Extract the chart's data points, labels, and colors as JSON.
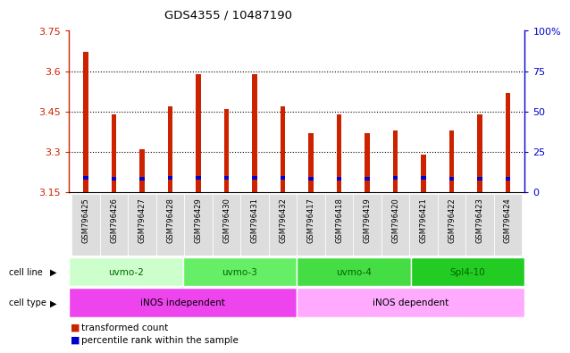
{
  "title": "GDS4355 / 10487190",
  "samples": [
    "GSM796425",
    "GSM796426",
    "GSM796427",
    "GSM796428",
    "GSM796429",
    "GSM796430",
    "GSM796431",
    "GSM796432",
    "GSM796417",
    "GSM796418",
    "GSM796419",
    "GSM796420",
    "GSM796421",
    "GSM796422",
    "GSM796423",
    "GSM796424"
  ],
  "red_values": [
    3.67,
    3.44,
    3.31,
    3.47,
    3.59,
    3.46,
    3.59,
    3.47,
    3.37,
    3.44,
    3.37,
    3.38,
    3.29,
    3.38,
    3.44,
    3.52
  ],
  "blue_bottom": [
    3.195,
    3.193,
    3.193,
    3.195,
    3.196,
    3.195,
    3.196,
    3.195,
    3.193,
    3.193,
    3.193,
    3.195,
    3.195,
    3.193,
    3.193,
    3.193
  ],
  "blue_heights": [
    0.013,
    0.013,
    0.013,
    0.013,
    0.013,
    0.013,
    0.013,
    0.013,
    0.013,
    0.013,
    0.013,
    0.013,
    0.013,
    0.013,
    0.013,
    0.013
  ],
  "ymin": 3.15,
  "ymax": 3.75,
  "y_ticks": [
    3.15,
    3.3,
    3.45,
    3.6,
    3.75
  ],
  "right_ticks": [
    "0",
    "25",
    "50",
    "75",
    "100%"
  ],
  "right_tick_pos": [
    3.15,
    3.3,
    3.45,
    3.6,
    3.75
  ],
  "cell_line_groups": [
    {
      "label": "uvmo-2",
      "start": 0,
      "end": 4,
      "color": "#ccffcc"
    },
    {
      "label": "uvmo-3",
      "start": 4,
      "end": 8,
      "color": "#66ee66"
    },
    {
      "label": "uvmo-4",
      "start": 8,
      "end": 12,
      "color": "#44dd44"
    },
    {
      "label": "Spl4-10",
      "start": 12,
      "end": 16,
      "color": "#22cc22"
    }
  ],
  "cell_type_groups": [
    {
      "label": "iNOS independent",
      "start": 0,
      "end": 8,
      "color": "#ee44ee"
    },
    {
      "label": "iNOS dependent",
      "start": 8,
      "end": 16,
      "color": "#ffaaff"
    }
  ],
  "bar_color_red": "#cc2200",
  "bar_color_blue": "#0000cc",
  "bar_width": 0.18,
  "bg_color": "#ffffff",
  "left_axis_color": "#cc2200",
  "right_axis_color": "#0000cc",
  "cell_line_label_color": "#006600",
  "label_bg_color": "#dddddd"
}
